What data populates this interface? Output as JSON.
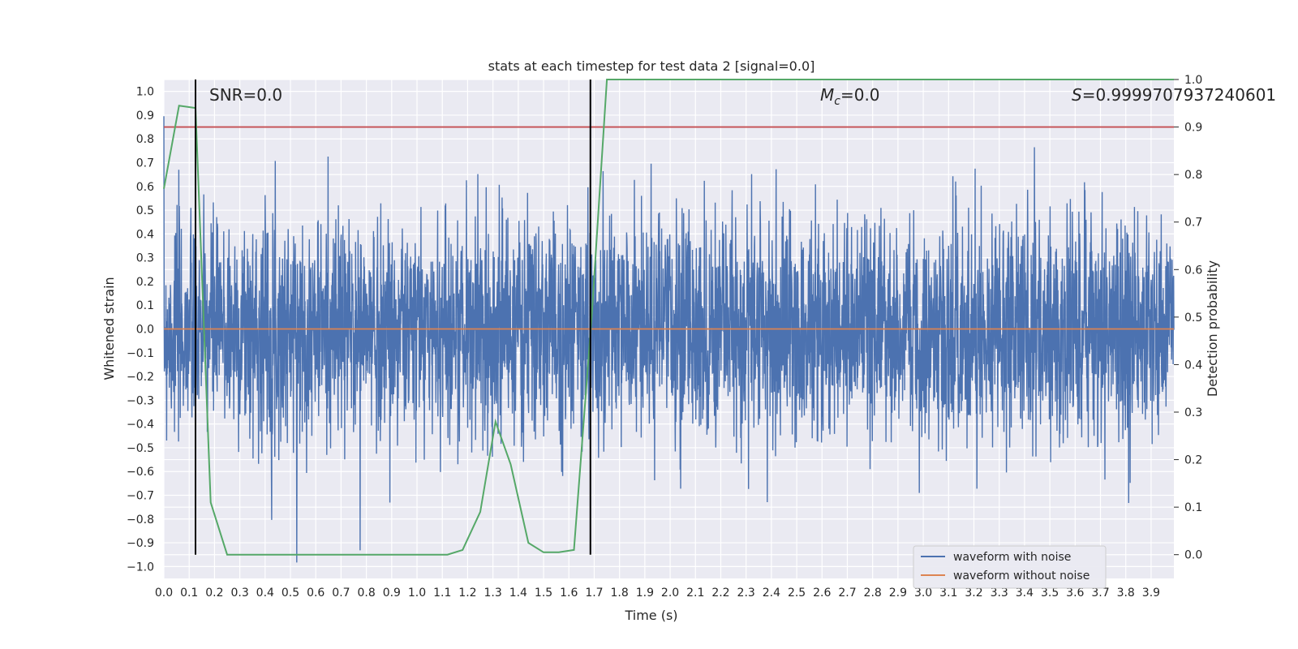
{
  "chart_data": {
    "type": "line",
    "title": "stats at each timestep for test data 2 [signal=0.0]",
    "xlabel": "Time (s)",
    "ylabel": "Whitened strain",
    "y2label": "Detection probability",
    "xlim": [
      0.0,
      3.99
    ],
    "ylim": [
      -1.05,
      1.05
    ],
    "y2lim": [
      -0.05,
      1.0
    ],
    "xticks": [
      "0.0",
      "0.1",
      "0.2",
      "0.3",
      "0.4",
      "0.5",
      "0.6",
      "0.7",
      "0.8",
      "0.9",
      "1.0",
      "1.1",
      "1.2",
      "1.3",
      "1.4",
      "1.5",
      "1.6",
      "1.7",
      "1.8",
      "1.9",
      "2.0",
      "2.1",
      "2.2",
      "2.3",
      "2.4",
      "2.5",
      "2.6",
      "2.7",
      "2.8",
      "2.9",
      "3.0",
      "3.1",
      "3.2",
      "3.3",
      "3.4",
      "3.5",
      "3.6",
      "3.7",
      "3.8",
      "3.9"
    ],
    "yticks": [
      "1.0",
      "0.9",
      "0.8",
      "0.7",
      "0.6",
      "0.5",
      "0.4",
      "0.3",
      "0.2",
      "0.1",
      "0.0",
      "−0.1",
      "−0.2",
      "−0.3",
      "−0.4",
      "−0.5",
      "−0.6",
      "−0.7",
      "−0.8",
      "−0.9",
      "−1.0"
    ],
    "y2ticks": [
      "1.0",
      "0.9",
      "0.8",
      "0.7",
      "0.6",
      "0.5",
      "0.4",
      "0.3",
      "0.2",
      "0.1",
      "0.0"
    ],
    "grid": true,
    "legend_position": "lower-right",
    "annotations": {
      "snr": "SNR=0.0",
      "mc_prefix": "M",
      "mc_sub": "c",
      "mc_value": "=0.0",
      "s_prefix": "S",
      "s_value": "=0.9999707937240601"
    },
    "series": [
      {
        "name": "waveform with noise",
        "color": "#4c72b0",
        "axis": "left",
        "kind": "noise"
      },
      {
        "name": "waveform without noise",
        "color": "#dd8452",
        "axis": "left",
        "x": [
          0.0,
          3.99
        ],
        "y": [
          0.0,
          0.0
        ]
      },
      {
        "color": "#55a868",
        "axis": "right",
        "x": [
          0.0,
          0.06,
          0.125,
          0.185,
          0.25,
          0.31,
          0.5,
          1.0,
          1.12,
          1.18,
          1.25,
          1.31,
          1.37,
          1.44,
          1.5,
          1.56,
          1.62,
          1.69,
          1.75,
          3.99
        ],
        "y": [
          0.77,
          0.945,
          0.94,
          0.11,
          0.0,
          0.0,
          0.0,
          0.0,
          0.0,
          0.01,
          0.09,
          0.28,
          0.19,
          0.025,
          0.005,
          0.005,
          0.01,
          0.5,
          1.0,
          1.0
        ]
      }
    ],
    "hlines": [
      {
        "axis": "right",
        "value": 0.9,
        "color": "#c44e52"
      }
    ],
    "vlines": [
      {
        "x": 0.125,
        "y2_range": [
          0.0,
          1.0
        ],
        "color": "#000000"
      },
      {
        "x": 1.685,
        "y2_range": [
          0.0,
          1.0
        ],
        "color": "#000000"
      }
    ],
    "noise_params": {
      "sigma": 0.23,
      "seed": 7
    }
  }
}
